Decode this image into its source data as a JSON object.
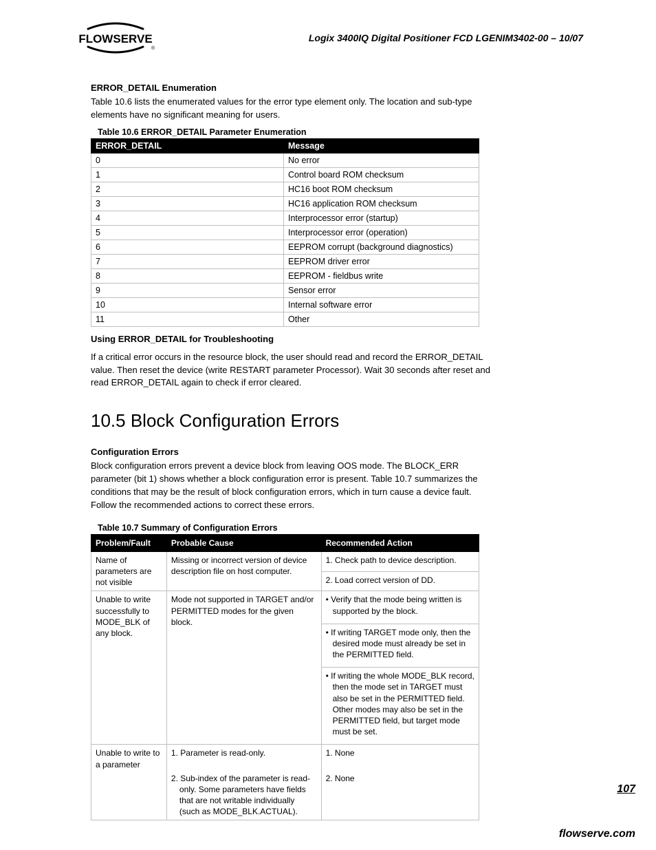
{
  "header": {
    "logo_text": "FLOWSERVE",
    "doc_title": "Logix 3400IQ Digital Positioner   FCD LGENIM3402-00 – 10/07"
  },
  "s1": {
    "h": "ERROR_DETAIL Enumeration",
    "p": "Table 10.6 lists the enumerated values for the error type element only. The location and sub-type elements have no significant meaning for users.",
    "caption": "Table 10.6 ERROR_DETAIL Parameter Enumeration",
    "col0": "ERROR_DETAIL",
    "col1": "Message",
    "rows": [
      [
        "0",
        "No error"
      ],
      [
        "1",
        "Control board ROM checksum"
      ],
      [
        "2",
        "HC16 boot ROM checksum"
      ],
      [
        "3",
        "HC16 application ROM checksum"
      ],
      [
        "4",
        "Interprocessor error (startup)"
      ],
      [
        "5",
        "Interprocessor error (operation)"
      ],
      [
        "6",
        "EEPROM corrupt (background diagnostics)"
      ],
      [
        "7",
        "EEPROM driver error"
      ],
      [
        "8",
        "EEPROM - fieldbus write"
      ],
      [
        "9",
        "Sensor error"
      ],
      [
        "10",
        "Internal software error"
      ],
      [
        "11",
        "Other"
      ]
    ]
  },
  "s2": {
    "h": "Using ERROR_DETAIL for Troubleshooting",
    "p": "If a critical error occurs in the resource block, the user should read and record the ERROR_DETAIL value. Then reset the device (write RESTART parameter Processor). Wait 30 seconds after reset and read ERROR_DETAIL again to check if error cleared."
  },
  "s3": {
    "title": "10.5 Block Configuration Errors",
    "h": "Configuration Errors",
    "p": "Block configuration errors prevent a device block from leaving OOS mode. The BLOCK_ERR parameter (bit 1) shows whether a block configuration error is present. Table 10.7 summarizes the conditions that may be the result of block configuration errors, which in turn cause a device fault. Follow the recommended actions to correct these errors.",
    "caption": "Table 10.7 Summary of Configuration Errors",
    "col0": "Problem/Fault",
    "col1": "Probable Cause",
    "col2": "Recommended Action",
    "r0": {
      "problem": "Name of parameters are not visible",
      "cause": "Missing or incorrect version of device description file on host computer.",
      "a1": "1. Check path to device description.",
      "a2": "2. Load correct version of DD."
    },
    "r1": {
      "problem": "Unable to write successfully to MODE_BLK of any block.",
      "cause": "Mode not supported in TARGET and/or PERMITTED modes for the given block.",
      "a1": "• Verify that the mode being written is supported by the block.",
      "a2": "• If writing TARGET mode only, then the desired mode must already be set in the PERMITTED field.",
      "a3": "• If writing the whole MODE_BLK record, then the mode set in TARGET must also be set in the PERMITTED field. Other modes may also be set in the PERMITTED field, but target mode must be set."
    },
    "r2": {
      "problem": "Unable to write to a parameter",
      "cause1": "1. Parameter is read-only.",
      "cause2": "2. Sub-index of the parameter is read-only. Some parameters have fields that are not writable individually (such as MODE_BLK.ACTUAL).",
      "a1": "1. None",
      "a2": "2. None"
    }
  },
  "page_num": "107",
  "footer": "flowserve.com"
}
